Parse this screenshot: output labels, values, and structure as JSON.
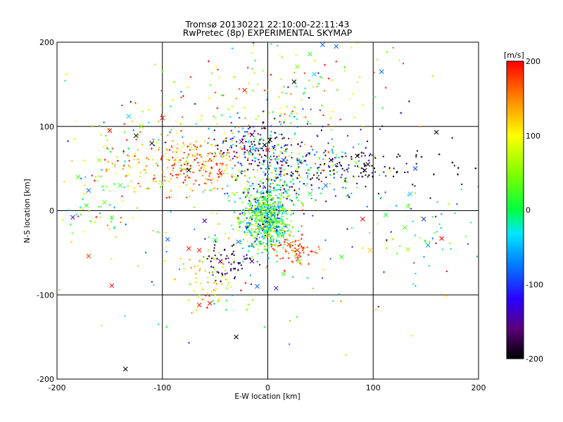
{
  "chart_data": {
    "type": "scatter",
    "title": "Tromsø 20130221 22:10:00-22:11:43",
    "subtitle": "RwPretec (8p) EXPERIMENTAL SKYMAP",
    "xlabel": "E-W location [km]",
    "ylabel": "N-S location [km]",
    "xlim": [
      -200,
      200
    ],
    "ylim": [
      -200,
      200
    ],
    "xticks": [
      "-200",
      "-100",
      "0",
      "100",
      "200"
    ],
    "yticks": [
      "-200",
      "-100",
      "0",
      "100",
      "200"
    ],
    "grid": true,
    "colorbar": {
      "label": "[m/s]",
      "range": [
        -200,
        200
      ],
      "ticks": [
        "200",
        "100",
        "0",
        "-100",
        "-200"
      ],
      "colormap": "rainbow (black-purple-blue-cyan-green-yellow-red)"
    },
    "clusters": [
      {
        "x": -2,
        "y": -10,
        "sx": 11,
        "sy": 18,
        "n": 650,
        "vmean": 10,
        "vsd": 55
      },
      {
        "x": 3,
        "y": 20,
        "sx": 18,
        "sy": 30,
        "n": 220,
        "vmean": -10,
        "vsd": 90
      },
      {
        "x": -10,
        "y": 78,
        "sx": 20,
        "sy": 12,
        "n": 130,
        "vmean": -130,
        "vsd": 60
      },
      {
        "x": -70,
        "y": 55,
        "sx": 32,
        "sy": 18,
        "n": 260,
        "vmean": 150,
        "vsd": 50
      },
      {
        "x": 28,
        "y": 52,
        "sx": 36,
        "sy": 22,
        "n": 200,
        "vmean": -70,
        "vsd": 110
      },
      {
        "x": 120,
        "y": 50,
        "sx": 40,
        "sy": 15,
        "n": 55,
        "vmean": -200,
        "vsd": 20
      },
      {
        "x": 80,
        "y": 55,
        "sx": 20,
        "sy": 15,
        "n": 45,
        "vmean": -150,
        "vsd": 60
      },
      {
        "x": -55,
        "y": -80,
        "sx": 12,
        "sy": 18,
        "n": 75,
        "vmean": 100,
        "vsd": 40
      },
      {
        "x": 25,
        "y": -45,
        "sx": 10,
        "sy": 8,
        "n": 70,
        "vmean": 170,
        "vsd": 30
      },
      {
        "x": -35,
        "y": -60,
        "sx": 10,
        "sy": 15,
        "n": 60,
        "vmean": -180,
        "vsd": 30
      },
      {
        "x": -130,
        "y": 50,
        "sx": 30,
        "sy": 30,
        "n": 80,
        "vmean": 60,
        "vsd": 100
      },
      {
        "x": -160,
        "y": 10,
        "sx": 20,
        "sy": 30,
        "n": 40,
        "vmean": 40,
        "vsd": 60
      },
      {
        "x": 140,
        "y": -20,
        "sx": 25,
        "sy": 25,
        "n": 45,
        "vmean": -20,
        "vsd": 60
      },
      {
        "x": 40,
        "y": 140,
        "sx": 40,
        "sy": 35,
        "n": 100,
        "vmean": 60,
        "vsd": 110
      },
      {
        "x": -60,
        "y": 130,
        "sx": 50,
        "sy": 30,
        "n": 70,
        "vmean": 100,
        "vsd": 80
      },
      {
        "x": 0,
        "y": 0,
        "sx": 100,
        "sy": 90,
        "n": 160,
        "vmean": 40,
        "vsd": 120
      }
    ],
    "crosses": [
      {
        "x": -135,
        "y": -188,
        "v": -200
      },
      {
        "x": -30,
        "y": -150,
        "v": -200
      },
      {
        "x": 52,
        "y": 197,
        "v": -80
      },
      {
        "x": 65,
        "y": 195,
        "v": -80
      },
      {
        "x": 108,
        "y": 165,
        "v": -80
      },
      {
        "x": 40,
        "y": 186,
        "v": 20
      },
      {
        "x": 28,
        "y": 171,
        "v": 50
      },
      {
        "x": 44,
        "y": 162,
        "v": -40
      },
      {
        "x": 25,
        "y": 153,
        "v": -210
      },
      {
        "x": -22,
        "y": 143,
        "v": 200
      },
      {
        "x": 160,
        "y": 93,
        "v": -200
      },
      {
        "x": -110,
        "y": 80,
        "v": -200
      },
      {
        "x": -75,
        "y": 48,
        "v": -200
      },
      {
        "x": -45,
        "y": 45,
        "v": 200
      },
      {
        "x": -150,
        "y": 95,
        "v": 200
      },
      {
        "x": -132,
        "y": 112,
        "v": -40
      },
      {
        "x": -120,
        "y": 100,
        "v": 50
      },
      {
        "x": -125,
        "y": 89,
        "v": -200
      },
      {
        "x": -170,
        "y": 24,
        "v": -80
      },
      {
        "x": -155,
        "y": 10,
        "v": 40
      },
      {
        "x": -172,
        "y": 6,
        "v": 20
      },
      {
        "x": -185,
        "y": -8,
        "v": -140
      },
      {
        "x": -148,
        "y": -8,
        "v": 40
      },
      {
        "x": -170,
        "y": -54,
        "v": 180
      },
      {
        "x": -148,
        "y": -89,
        "v": 200
      },
      {
        "x": -95,
        "y": -34,
        "v": -80
      },
      {
        "x": -60,
        "y": -12,
        "v": -140
      },
      {
        "x": -75,
        "y": -45,
        "v": 190
      },
      {
        "x": -55,
        "y": -110,
        "v": 200
      },
      {
        "x": -65,
        "y": -112,
        "v": 190
      },
      {
        "x": -10,
        "y": -90,
        "v": -80
      },
      {
        "x": 8,
        "y": -92,
        "v": -140
      },
      {
        "x": 15,
        "y": -75,
        "v": 20
      },
      {
        "x": 30,
        "y": -60,
        "v": 50
      },
      {
        "x": 28,
        "y": -47,
        "v": 180
      },
      {
        "x": 70,
        "y": -55,
        "v": 20
      },
      {
        "x": 97,
        "y": -47,
        "v": 120
      },
      {
        "x": 90,
        "y": -10,
        "v": 200
      },
      {
        "x": 112,
        "y": -5,
        "v": 10
      },
      {
        "x": 130,
        "y": -20,
        "v": 30
      },
      {
        "x": 133,
        "y": -46,
        "v": 60
      },
      {
        "x": 152,
        "y": -41,
        "v": -60
      },
      {
        "x": 165,
        "y": -33,
        "v": 200
      },
      {
        "x": 148,
        "y": -10,
        "v": -100
      },
      {
        "x": 133,
        "y": 5,
        "v": 40
      },
      {
        "x": 135,
        "y": 20,
        "v": -40
      },
      {
        "x": 140,
        "y": 50,
        "v": -100
      },
      {
        "x": 95,
        "y": 55,
        "v": -200
      },
      {
        "x": 92,
        "y": 48,
        "v": -200
      },
      {
        "x": 85,
        "y": 65,
        "v": -200
      },
      {
        "x": -3,
        "y": 78,
        "v": -200
      },
      {
        "x": -15,
        "y": 90,
        "v": -150
      },
      {
        "x": 2,
        "y": 84,
        "v": -200
      },
      {
        "x": -25,
        "y": 82,
        "v": -160
      },
      {
        "x": 0,
        "y": 72,
        "v": 200
      },
      {
        "x": 15,
        "y": 60,
        "v": -100
      },
      {
        "x": -30,
        "y": 38,
        "v": 60
      },
      {
        "x": -28,
        "y": -37,
        "v": -80
      },
      {
        "x": -50,
        "y": -35,
        "v": 0
      },
      {
        "x": -65,
        "y": -47,
        "v": 190
      },
      {
        "x": -45,
        "y": -60,
        "v": -130
      },
      {
        "x": -15,
        "y": -60,
        "v": -170
      },
      {
        "x": 5,
        "y": -5,
        "v": -80
      },
      {
        "x": 10,
        "y": -30,
        "v": 30
      },
      {
        "x": -5,
        "y": -20,
        "v": 150
      },
      {
        "x": 20,
        "y": -40,
        "v": 180
      },
      {
        "x": 55,
        "y": 30,
        "v": -80
      },
      {
        "x": 40,
        "y": 20,
        "v": 10
      },
      {
        "x": 60,
        "y": 60,
        "v": -200
      },
      {
        "x": -100,
        "y": 110,
        "v": 200
      },
      {
        "x": -180,
        "y": 40,
        "v": 30
      },
      {
        "x": -160,
        "y": 60,
        "v": 60
      },
      {
        "x": -140,
        "y": 30,
        "v": 20
      }
    ]
  }
}
